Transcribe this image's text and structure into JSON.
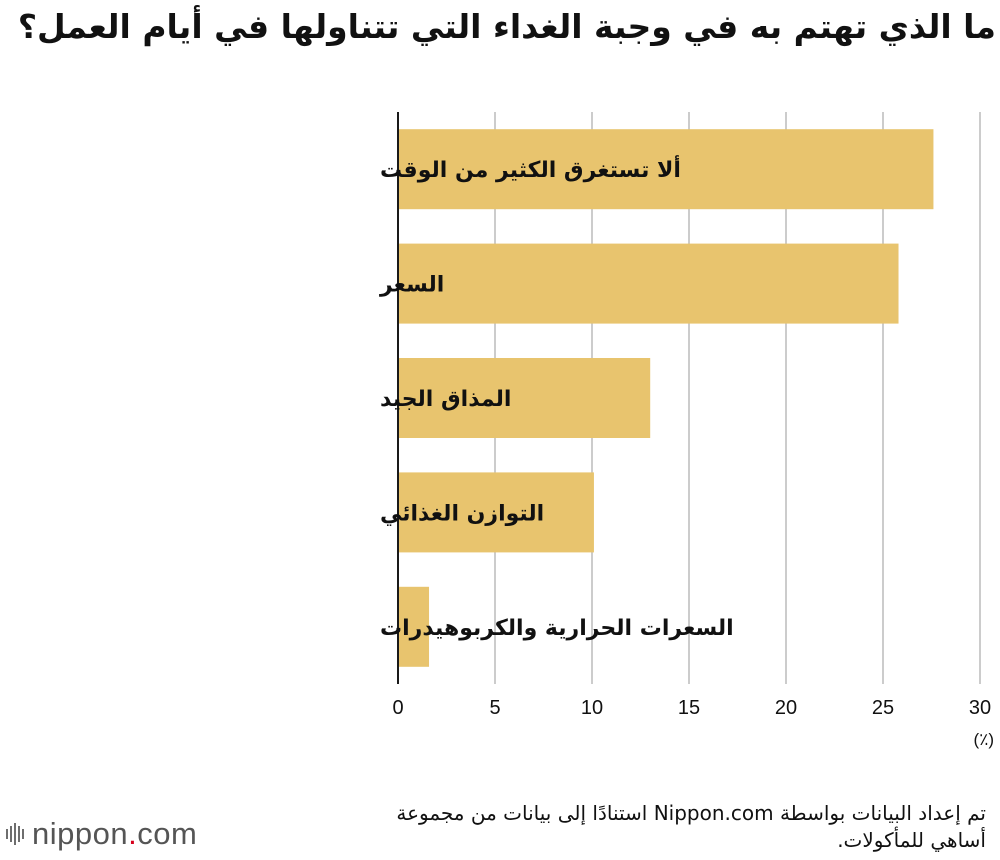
{
  "chart_data": {
    "type": "bar",
    "orientation": "horizontal",
    "title": "ما الذي تهتم به في وجبة الغداء التي تتناولها في أيام العمل؟",
    "categories": [
      "ألا تستغرق الكثير من الوقت",
      "السعر",
      "المذاق الجيد",
      "التوازن الغذائي",
      "السعرات الحرارية والكربوهيدرات"
    ],
    "values": [
      27.6,
      25.8,
      13.0,
      10.1,
      1.6
    ],
    "xlim": [
      0,
      30
    ],
    "xticks": [
      "0",
      "5",
      "10",
      "15",
      "20",
      "25",
      "30"
    ],
    "unit": "(٪)",
    "grid": "vertical",
    "bar_color": "#e8c46e",
    "grid_color": "#cccccc"
  },
  "source_note": "تم إعداد البيانات بواسطة Nippon.com استنادًا إلى بيانات من مجموعة أساهي للمأكولات.",
  "brand": {
    "name": "nippon",
    "dot": ".",
    "suffix": "com",
    "accent": "#d6001c"
  }
}
